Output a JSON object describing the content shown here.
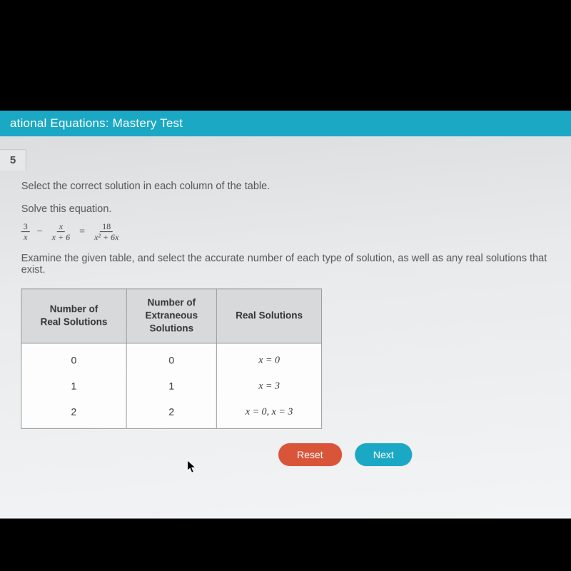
{
  "header": {
    "title": "ational Equations: Mastery Test"
  },
  "question": {
    "number": "5"
  },
  "body": {
    "instruction": "Select the correct solution in each column of the table.",
    "solve_label": "Solve this equation.",
    "examine": "Examine the given table, and select the accurate number of each type of solution, as well as any real solutions that exist."
  },
  "equation": {
    "frac1": {
      "num": "3",
      "den": "x"
    },
    "minus": "−",
    "frac2": {
      "num": "x",
      "den": "x + 6"
    },
    "equals": "=",
    "frac3": {
      "num": "18",
      "den": "x² + 6x"
    }
  },
  "table": {
    "headers": {
      "col1": "Number of\nReal Solutions",
      "col2": "Number of\nExtraneous\nSolutions",
      "col3": "Real Solutions"
    },
    "rows": [
      {
        "c1": "0",
        "c2": "0",
        "c3": "x = 0"
      },
      {
        "c1": "1",
        "c2": "1",
        "c3": "x = 3"
      },
      {
        "c1": "2",
        "c2": "2",
        "c3": "x = 0, x = 3"
      }
    ]
  },
  "buttons": {
    "reset": "Reset",
    "next": "Next"
  },
  "colors": {
    "header_bg": "#1ba8c4",
    "reset_bg": "#d8553a",
    "next_bg": "#1ba8c4",
    "screen_bg": "#e8eaec",
    "table_header_bg": "#d8d9da",
    "border": "#9a9b9c"
  }
}
